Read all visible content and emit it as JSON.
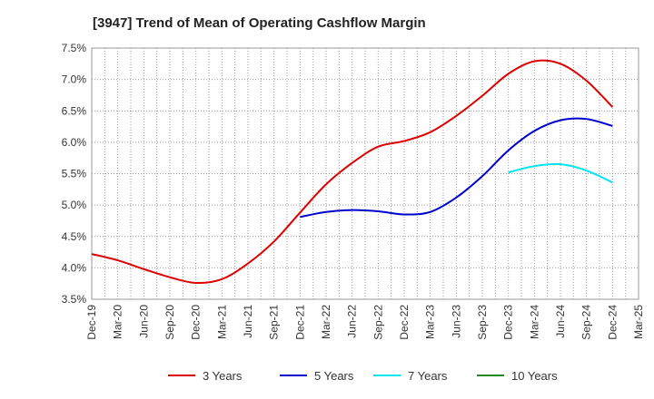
{
  "chart_data": {
    "type": "line",
    "title": "[3947]  Trend of Mean of Operating Cashflow Margin",
    "xlabel": "",
    "ylabel": "",
    "x_ticks": [
      "Dec-19",
      "Mar-20",
      "Jun-20",
      "Sep-20",
      "Dec-20",
      "Mar-21",
      "Jun-21",
      "Sep-21",
      "Dec-21",
      "Mar-22",
      "Jun-22",
      "Sep-22",
      "Dec-22",
      "Mar-23",
      "Jun-23",
      "Sep-23",
      "Dec-23",
      "Mar-24",
      "Jun-24",
      "Sep-24",
      "Dec-24",
      "Mar-25"
    ],
    "y_ticks": [
      "3.5%",
      "4.0%",
      "4.5%",
      "5.0%",
      "5.5%",
      "6.0%",
      "6.5%",
      "7.0%",
      "7.5%"
    ],
    "ylim": [
      3.5,
      7.5
    ],
    "grid": true,
    "legend_position": "bottom",
    "series": [
      {
        "name": "3 Years",
        "color": "#dd0000",
        "x": [
          "Dec-19",
          "Mar-20",
          "Jun-20",
          "Sep-20",
          "Dec-20",
          "Mar-21",
          "Jun-21",
          "Sep-21",
          "Dec-21",
          "Mar-22",
          "Jun-22",
          "Sep-22",
          "Dec-22",
          "Mar-23",
          "Jun-23",
          "Sep-23",
          "Dec-23",
          "Mar-24",
          "Jun-24",
          "Sep-24",
          "Dec-24"
        ],
        "values": [
          4.22,
          4.12,
          3.98,
          3.85,
          3.76,
          3.82,
          4.07,
          4.42,
          4.88,
          5.33,
          5.67,
          5.93,
          6.02,
          6.16,
          6.42,
          6.74,
          7.09,
          7.29,
          7.25,
          6.98,
          6.56
        ]
      },
      {
        "name": "5 Years",
        "color": "#0000cc",
        "x": [
          "Dec-21",
          "Mar-22",
          "Jun-22",
          "Sep-22",
          "Dec-22",
          "Mar-23",
          "Jun-23",
          "Sep-23",
          "Dec-23",
          "Mar-24",
          "Jun-24",
          "Sep-24",
          "Dec-24"
        ],
        "values": [
          4.81,
          4.89,
          4.92,
          4.9,
          4.85,
          4.89,
          5.12,
          5.46,
          5.87,
          6.18,
          6.35,
          6.37,
          6.26
        ]
      },
      {
        "name": "7 Years",
        "color": "#00e5ee",
        "x": [
          "Dec-23",
          "Mar-24",
          "Jun-24",
          "Sep-24",
          "Dec-24"
        ],
        "values": [
          5.52,
          5.62,
          5.65,
          5.55,
          5.36
        ]
      },
      {
        "name": "10 Years",
        "color": "#228822",
        "x": [],
        "values": []
      }
    ]
  }
}
